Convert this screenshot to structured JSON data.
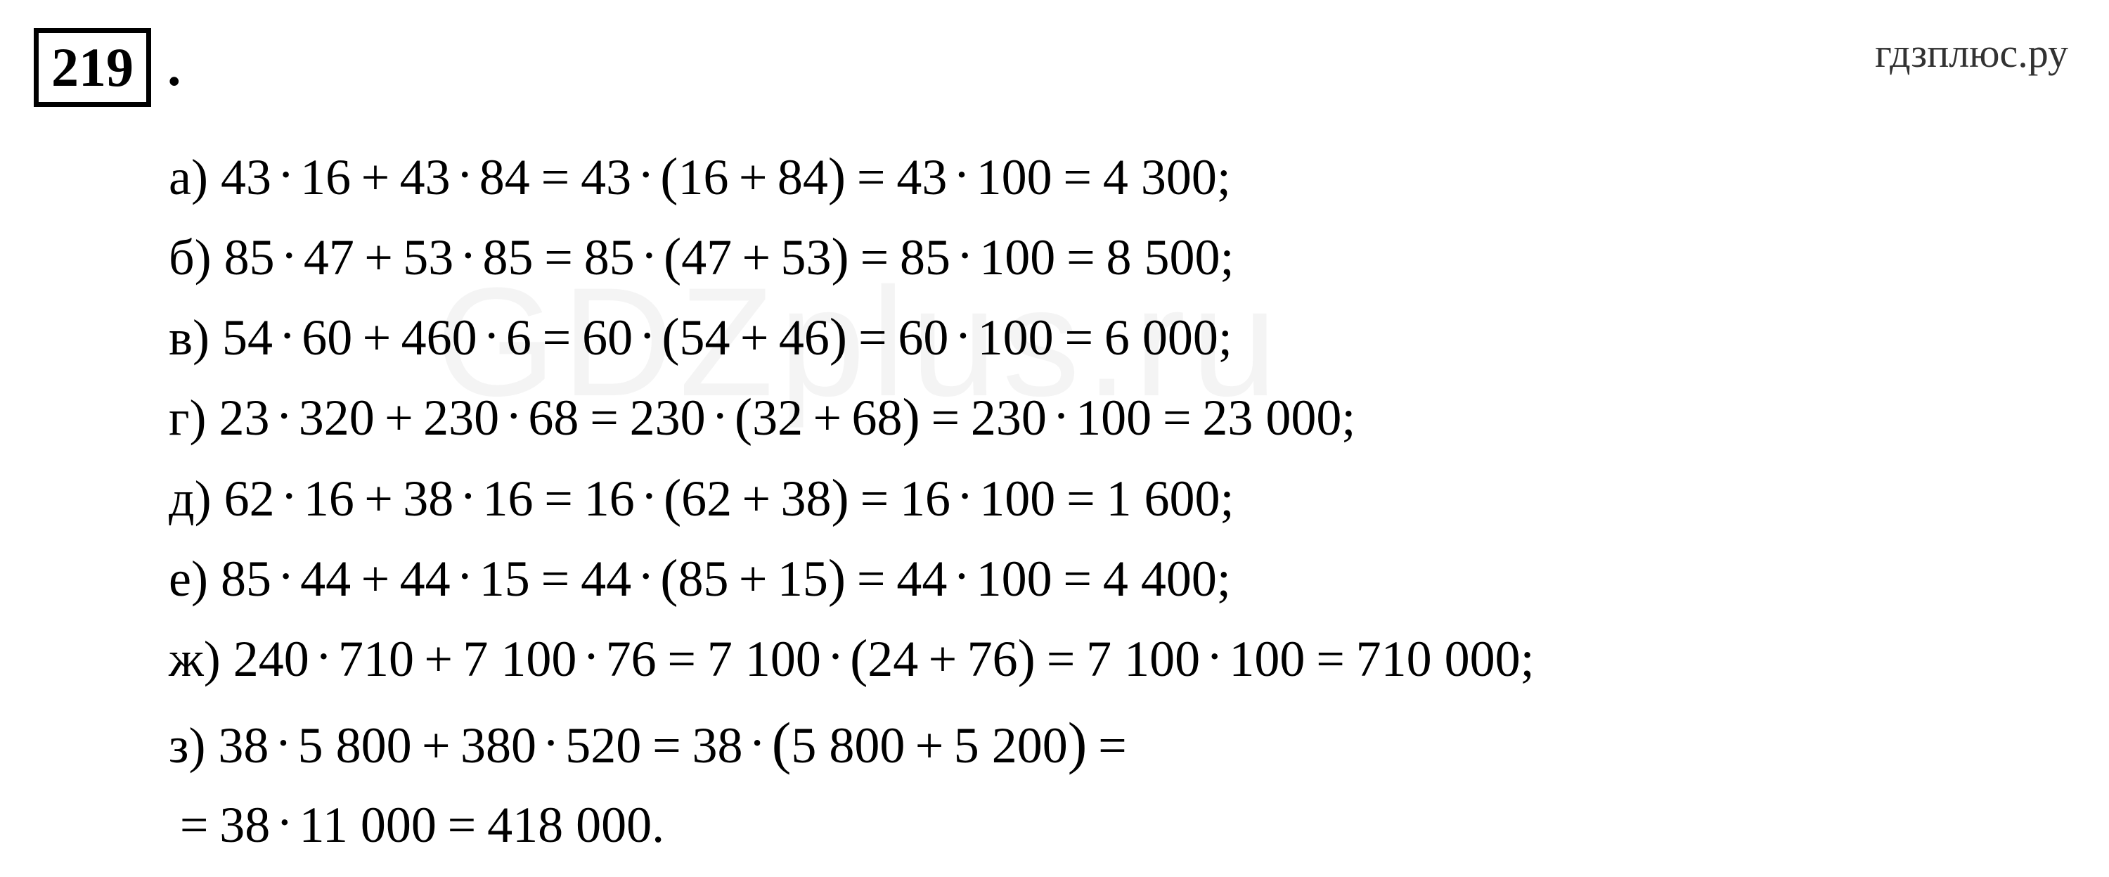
{
  "exercise_number": "219",
  "watermark_top": "гдзплюс.ру",
  "watermark_center": "GDZplus.ru",
  "colors": {
    "background": "#ffffff",
    "text": "#000000",
    "watermark_top": "#323232",
    "watermark_center": "rgba(128,128,128,0.09)",
    "box_border": "#000000"
  },
  "typography": {
    "equation_fontsize": 72,
    "number_fontsize": 78,
    "watermark_top_fontsize": 58,
    "watermark_center_fontsize": 220,
    "font_family": "Times New Roman"
  },
  "equations": [
    {
      "label": "а)",
      "lhs_a": "43",
      "lhs_b": "16",
      "lhs_c": "43",
      "lhs_d": "84",
      "factored_k": "43",
      "factored_m": "16",
      "factored_n": "84",
      "prod_a": "43",
      "prod_b": "100",
      "result": "4 300"
    },
    {
      "label": "б)",
      "lhs_a": "85",
      "lhs_b": "47",
      "lhs_c": "53",
      "lhs_d": "85",
      "factored_k": "85",
      "factored_m": "47",
      "factored_n": "53",
      "prod_a": "85",
      "prod_b": "100",
      "result": "8 500"
    },
    {
      "label": "в)",
      "lhs_a": "54",
      "lhs_b": "60",
      "lhs_c": "460",
      "lhs_d": "6",
      "factored_k": "60",
      "factored_m": "54",
      "factored_n": "46",
      "prod_a": "60",
      "prod_b": "100",
      "result": "6 000"
    },
    {
      "label": "г)",
      "lhs_a": "23",
      "lhs_b": "320",
      "lhs_c": "230",
      "lhs_d": "68",
      "factored_k": "230",
      "factored_m": "32",
      "factored_n": "68",
      "prod_a": "230",
      "prod_b": "100",
      "result": "23 000"
    },
    {
      "label": "д)",
      "lhs_a": "62",
      "lhs_b": "16",
      "lhs_c": "38",
      "lhs_d": "16",
      "factored_k": "16",
      "factored_m": "62",
      "factored_n": "38",
      "prod_a": "16",
      "prod_b": "100",
      "result": "1 600"
    },
    {
      "label": "е)",
      "lhs_a": "85",
      "lhs_b": "44",
      "lhs_c": "44",
      "lhs_d": "15",
      "factored_k": "44",
      "factored_m": "85",
      "factored_n": "15",
      "prod_a": "44",
      "prod_b": "100",
      "result": "4 400"
    },
    {
      "label": "ж)",
      "lhs_a": "240",
      "lhs_b": "710",
      "lhs_c": "7 100",
      "lhs_d": "76",
      "factored_k": "7 100",
      "factored_m": "24",
      "factored_n": "76",
      "prod_a": "7 100",
      "prod_b": "100",
      "result": "710 000"
    },
    {
      "label": "з)",
      "lhs_a": "38",
      "lhs_b": "5 800",
      "lhs_c": "380",
      "lhs_d": "520",
      "factored_k": "38",
      "factored_m": "5 800",
      "factored_n": "5 200",
      "prod_a": "38",
      "prod_b": "11 000",
      "result": "418 000",
      "two_line": true,
      "large_paren": true
    }
  ]
}
